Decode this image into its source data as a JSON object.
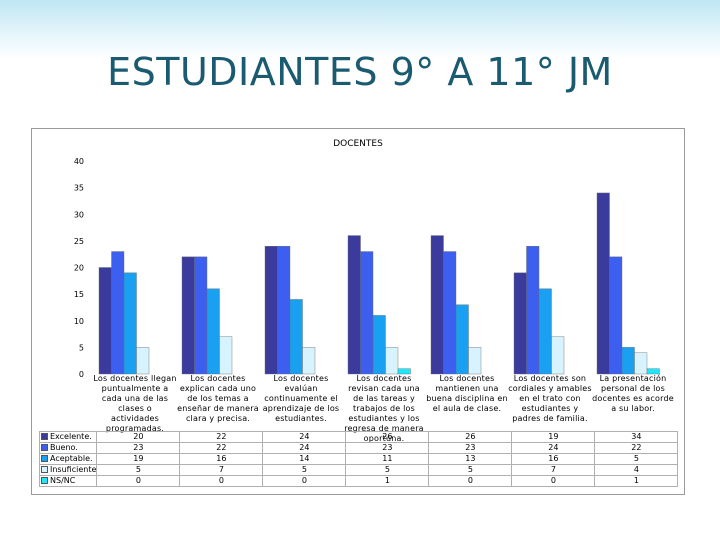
{
  "slide": {
    "title": "ESTUDIANTES 9° A  11° JM"
  },
  "chart_data": {
    "type": "bar",
    "title": "DOCENTES",
    "xlabel": "",
    "ylabel": "",
    "ylim": [
      0,
      40
    ],
    "yticks": [
      "0",
      "5",
      "10",
      "15",
      "20",
      "25",
      "30",
      "35",
      "40"
    ],
    "grid": false,
    "legend": "data-table-left",
    "categories": [
      "Los docentes llegan puntualmente a cada una de las clases o actividades programadas.",
      "Los docentes explican cada uno de los temas a enseñar de manera clara y precisa.",
      "Los docentes evalúan continuamente el aprendizaje de  los estudiantes.",
      "Los docentes revisan cada una de las tareas y trabajos de los estudiantes y los regresa de manera oportuna.",
      "Los docentes mantienen una buena disciplina en el aula de clase.",
      "Los docentes son cordiales y amables en el trato con estudiantes y padres de familia.",
      "La presentación personal de los docentes es acorde a su labor."
    ],
    "series": [
      {
        "name": "Excelente.",
        "color": "#3b3b9e",
        "values": [
          20,
          22,
          24,
          26,
          26,
          19,
          34
        ]
      },
      {
        "name": "Bueno.",
        "color": "#3d5ff0",
        "values": [
          23,
          22,
          24,
          23,
          23,
          24,
          22
        ]
      },
      {
        "name": "Aceptable.",
        "color": "#1aa0f0",
        "values": [
          19,
          16,
          14,
          11,
          13,
          16,
          5
        ]
      },
      {
        "name": "Insuficiente",
        "color": "#d7f3ff",
        "values": [
          5,
          7,
          5,
          5,
          5,
          7,
          4
        ]
      },
      {
        "name": "NS/NC",
        "color": "#1fe6ff",
        "values": [
          0,
          0,
          0,
          1,
          0,
          0,
          1
        ]
      }
    ],
    "table_values": [
      [
        "20",
        "22",
        "24",
        "26",
        "26",
        "19",
        "34"
      ],
      [
        "23",
        "22",
        "24",
        "23",
        "23",
        "24",
        "22"
      ],
      [
        "19",
        "16",
        "14",
        "11",
        "13",
        "16",
        "5"
      ],
      [
        "5",
        "7",
        "5",
        "5",
        "5",
        "7",
        "4"
      ],
      [
        "0",
        "0",
        "0",
        "1",
        "0",
        "0",
        "1"
      ]
    ]
  }
}
